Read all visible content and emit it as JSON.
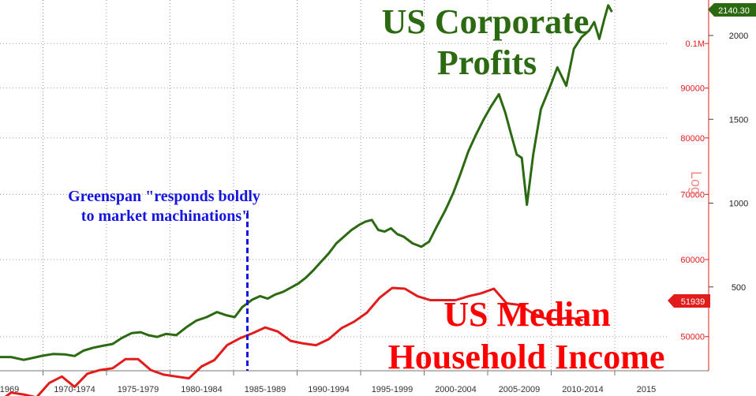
{
  "chart_data": {
    "type": "line",
    "title_lines": [
      "US Corporate",
      "Profits"
    ],
    "subtitle_lines": [
      "US Median",
      "Household Income"
    ],
    "annotation_lines": [
      "Greenspan \"responds boldly",
      "to market machinations\""
    ],
    "annotation_x": 1987.6,
    "x_tick_labels": [
      "1969",
      "1970-1974",
      "1975-1979",
      "1980-1984",
      "1985-1989",
      "1990-1994",
      "1995-1999",
      "2000-2004",
      "2005-2009",
      "2010-2014",
      "2015"
    ],
    "x_range": [
      1969,
      2016
    ],
    "left_axis": {
      "label": "Log",
      "scale": "log",
      "ticks": [
        {
          "value": 50000,
          "label": "50000"
        },
        {
          "value": 60000,
          "label": "60000"
        },
        {
          "value": 70000,
          "label": "70000"
        },
        {
          "value": 80000,
          "label": "80000"
        },
        {
          "value": 90000,
          "label": "90000"
        },
        {
          "value": 100000,
          "label": "0.1M"
        }
      ],
      "last_value_label": "51939",
      "color": "#e21b1b"
    },
    "right_axis": {
      "ticks": [
        {
          "value": 500,
          "label": "500"
        },
        {
          "value": 1000,
          "label": "1000"
        },
        {
          "value": 1500,
          "label": "1500"
        },
        {
          "value": 2000,
          "label": "2000"
        }
      ],
      "last_value_label": "2140.30",
      "color": "#2c6a12"
    },
    "series": [
      {
        "name": "US Corporate Profits",
        "axis": "right",
        "color": "#2c6a12",
        "points": [
          [
            1967.8,
            82
          ],
          [
            1969.0,
            82
          ],
          [
            1970.0,
            65
          ],
          [
            1970.8,
            78
          ],
          [
            1971.5,
            90
          ],
          [
            1972.3,
            100
          ],
          [
            1973.2,
            98
          ],
          [
            1974.0,
            88
          ],
          [
            1974.7,
            120
          ],
          [
            1975.5,
            138
          ],
          [
            1976.3,
            150
          ],
          [
            1977.0,
            160
          ],
          [
            1977.7,
            195
          ],
          [
            1978.5,
            225
          ],
          [
            1979.2,
            230
          ],
          [
            1979.8,
            212
          ],
          [
            1980.5,
            202
          ],
          [
            1981.2,
            220
          ],
          [
            1982.0,
            212
          ],
          [
            1982.8,
            260
          ],
          [
            1983.6,
            300
          ],
          [
            1984.4,
            320
          ],
          [
            1985.2,
            350
          ],
          [
            1986.0,
            330
          ],
          [
            1986.6,
            320
          ],
          [
            1987.2,
            380
          ],
          [
            1988.0,
            425
          ],
          [
            1988.6,
            445
          ],
          [
            1989.2,
            430
          ],
          [
            1989.8,
            455
          ],
          [
            1990.4,
            470
          ],
          [
            1991.0,
            495
          ],
          [
            1991.6,
            520
          ],
          [
            1992.2,
            555
          ],
          [
            1992.8,
            600
          ],
          [
            1993.4,
            650
          ],
          [
            1994.0,
            700
          ],
          [
            1994.6,
            760
          ],
          [
            1995.2,
            800
          ],
          [
            1995.8,
            840
          ],
          [
            1996.4,
            870
          ],
          [
            1996.9,
            890
          ],
          [
            1997.4,
            900
          ],
          [
            1997.9,
            840
          ],
          [
            1998.4,
            830
          ],
          [
            1998.9,
            850
          ],
          [
            1999.4,
            815
          ],
          [
            1999.9,
            800
          ],
          [
            2000.6,
            760
          ],
          [
            2001.3,
            740
          ],
          [
            2001.9,
            770
          ],
          [
            2002.5,
            860
          ],
          [
            2003.2,
            960
          ],
          [
            2003.8,
            1060
          ],
          [
            2004.4,
            1180
          ],
          [
            2005.0,
            1310
          ],
          [
            2005.6,
            1410
          ],
          [
            2006.2,
            1500
          ],
          [
            2006.8,
            1580
          ],
          [
            2007.4,
            1650
          ],
          [
            2007.9,
            1540
          ],
          [
            2008.4,
            1400
          ],
          [
            2008.8,
            1290
          ],
          [
            2009.2,
            1270
          ],
          [
            2009.6,
            990
          ],
          [
            2010.1,
            1290
          ],
          [
            2010.7,
            1560
          ],
          [
            2011.4,
            1690
          ],
          [
            2012.0,
            1810
          ],
          [
            2012.7,
            1700
          ],
          [
            2013.3,
            1920
          ],
          [
            2013.9,
            1990
          ],
          [
            2014.5,
            2030
          ],
          [
            2014.9,
            2080
          ],
          [
            2015.3,
            1980
          ],
          [
            2015.7,
            2100
          ],
          [
            2016.0,
            2180
          ],
          [
            2016.3,
            2140
          ]
        ]
      },
      {
        "name": "US Median Household Income",
        "axis": "left",
        "color": "#e21b1b",
        "points": [
          [
            1968.0,
            42800
          ],
          [
            1969.0,
            43800
          ],
          [
            1970.0,
            43600
          ],
          [
            1971.0,
            43300
          ],
          [
            1972.0,
            44800
          ],
          [
            1973.0,
            45500
          ],
          [
            1974.0,
            44400
          ],
          [
            1975.0,
            45800
          ],
          [
            1976.0,
            46200
          ],
          [
            1977.0,
            46400
          ],
          [
            1978.0,
            47400
          ],
          [
            1979.0,
            47400
          ],
          [
            1980.0,
            46200
          ],
          [
            1981.0,
            45700
          ],
          [
            1982.0,
            45500
          ],
          [
            1983.0,
            45300
          ],
          [
            1984.0,
            46600
          ],
          [
            1985.0,
            47300
          ],
          [
            1986.0,
            49000
          ],
          [
            1987.0,
            49800
          ],
          [
            1988.0,
            50400
          ],
          [
            1989.0,
            51100
          ],
          [
            1990.0,
            50600
          ],
          [
            1991.0,
            49500
          ],
          [
            1992.0,
            49200
          ],
          [
            1993.0,
            49000
          ],
          [
            1994.0,
            49700
          ],
          [
            1995.0,
            51000
          ],
          [
            1996.0,
            51800
          ],
          [
            1997.0,
            52900
          ],
          [
            1998.0,
            54800
          ],
          [
            1999.0,
            56100
          ],
          [
            2000.0,
            56000
          ],
          [
            2001.0,
            55000
          ],
          [
            2002.0,
            54500
          ],
          [
            2003.0,
            54500
          ],
          [
            2004.0,
            54500
          ],
          [
            2005.0,
            55000
          ],
          [
            2006.0,
            55400
          ],
          [
            2007.0,
            56000
          ],
          [
            2008.0,
            54100
          ],
          [
            2009.0,
            53900
          ],
          [
            2010.0,
            52900
          ],
          [
            2011.0,
            52200
          ],
          [
            2012.0,
            52100
          ],
          [
            2013.0,
            52300
          ],
          [
            2014.0,
            51939
          ]
        ]
      }
    ]
  }
}
